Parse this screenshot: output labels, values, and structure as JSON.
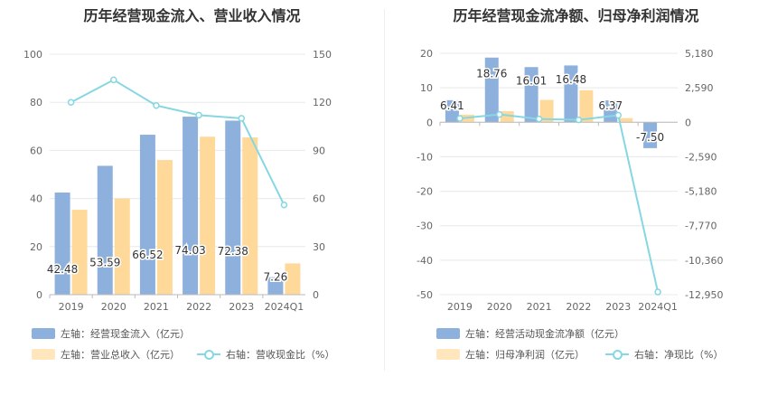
{
  "chart_data": [
    {
      "type": "bar",
      "title": "历年经营现金流入、营业收入情况",
      "categories": [
        "2019",
        "2020",
        "2021",
        "2022",
        "2023",
        "2024Q1"
      ],
      "left_axis": {
        "ylim": [
          0,
          100
        ],
        "ticks": [
          "0",
          "20",
          "40",
          "60",
          "80",
          "100"
        ]
      },
      "right_axis": {
        "ylim": [
          0,
          150
        ],
        "ticks": [
          "0",
          "30",
          "60",
          "90",
          "120",
          "150"
        ]
      },
      "series": [
        {
          "name": "左轴：经营现金流入（亿元）",
          "type": "bar",
          "axis": "left",
          "color": "#8eb0dd",
          "values": [
            42.48,
            53.59,
            66.52,
            74.03,
            72.38,
            7.26
          ],
          "labels": [
            "42.48",
            "53.59",
            "66.52",
            "74.03",
            "72.38",
            "7.26"
          ]
        },
        {
          "name": "左轴：营业总收入（亿元）",
          "type": "bar",
          "axis": "left",
          "color": "#ffd99a",
          "values": [
            35.3,
            40.0,
            56.0,
            65.7,
            65.4,
            13.0
          ]
        },
        {
          "name": "右轴：营收现金比（%）",
          "type": "line",
          "axis": "right",
          "color": "#86d7e1",
          "values": [
            120,
            134,
            118,
            112,
            110,
            56
          ]
        }
      ]
    },
    {
      "type": "bar",
      "title": "历年经营现金流净额、归母净利润情况",
      "categories": [
        "2019",
        "2020",
        "2021",
        "2022",
        "2023",
        "2024Q1"
      ],
      "left_axis": {
        "ylim": [
          -50,
          20
        ],
        "ticks": [
          "-50",
          "-40",
          "-30",
          "-20",
          "-10",
          "0",
          "10",
          "20"
        ]
      },
      "right_axis": {
        "ylim": [
          -12950,
          5180
        ],
        "ticks": [
          "-12,950",
          "-10,360",
          "-7,770",
          "-5,180",
          "-2,590",
          "0",
          "2,590",
          "5,180"
        ]
      },
      "series": [
        {
          "name": "左轴：经营活动现金流净额（亿元）",
          "type": "bar",
          "axis": "left",
          "color": "#8eb0dd",
          "values": [
            6.41,
            18.76,
            16.01,
            16.48,
            6.37,
            -7.5
          ],
          "labels": [
            "6.41",
            "18.76",
            "16.01",
            "16.48",
            "6.37",
            "-7.50"
          ]
        },
        {
          "name": "左轴：归母净利润（亿元）",
          "type": "bar",
          "axis": "left",
          "color": "#ffd99a",
          "values": [
            2.2,
            3.2,
            6.5,
            9.3,
            1.2,
            0.0
          ]
        },
        {
          "name": "右轴：净现比（%）",
          "type": "line",
          "axis": "right",
          "color": "#86d7e1",
          "values": [
            290,
            590,
            250,
            180,
            530,
            -12750
          ]
        }
      ]
    }
  ]
}
